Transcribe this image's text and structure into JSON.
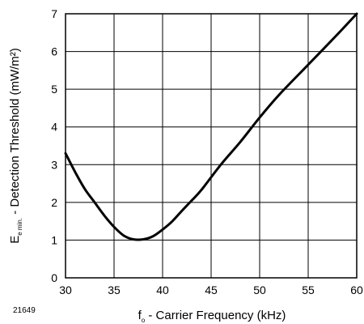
{
  "figure_id": "21649",
  "chart_data": {
    "type": "line",
    "xlabel": {
      "main": "f",
      "sub": "o",
      "rest": " - Carrier Frequency (kHz)"
    },
    "ylabel": {
      "main": "E",
      "sub": "e min.",
      "rest": " - Detection Threshold (mW/m²)"
    },
    "xlim": [
      30,
      60
    ],
    "ylim": [
      0,
      7
    ],
    "xticks": [
      "30",
      "35",
      "40",
      "45",
      "50",
      "55",
      "60"
    ],
    "yticks": [
      "0",
      "1",
      "2",
      "3",
      "4",
      "5",
      "6",
      "7"
    ],
    "grid": true,
    "series": [
      {
        "x": [
          30,
          31,
          32,
          33,
          34,
          35,
          36,
          37,
          38,
          39,
          40,
          41,
          42,
          43,
          44,
          46,
          48,
          50,
          52,
          55,
          58,
          60
        ],
        "y": [
          3.3,
          2.8,
          2.35,
          2.0,
          1.65,
          1.35,
          1.12,
          1.02,
          1.02,
          1.1,
          1.28,
          1.5,
          1.78,
          2.05,
          2.33,
          3.0,
          3.6,
          4.25,
          4.85,
          5.65,
          6.45,
          7.0
        ]
      }
    ],
    "line_color": "#000000"
  }
}
